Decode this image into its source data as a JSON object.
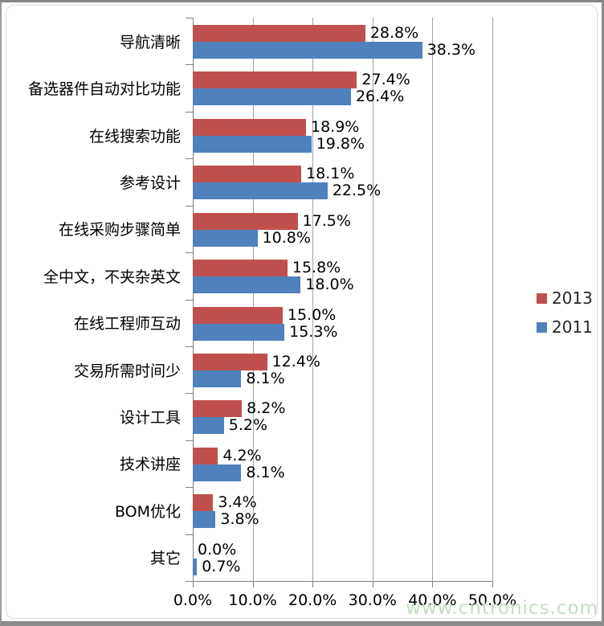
{
  "chart_data": {
    "type": "bar",
    "orientation": "horizontal",
    "title": "",
    "xlabel": "",
    "ylabel": "",
    "xlim": [
      0,
      50
    ],
    "grid": "vertical",
    "legend_position": "right",
    "categories": [
      "导航清晰",
      "备选器件自动对比功能",
      "在线搜索功能",
      "参考设计",
      "在线采购步骤简单",
      "全中文，不夹杂英文",
      "在线工程师互动",
      "交易所需时间少",
      "设计工具",
      "技术讲座",
      "BOM优化",
      "其它"
    ],
    "series": [
      {
        "name": "2013",
        "color": "#C0504D",
        "values": [
          28.8,
          27.4,
          18.9,
          18.1,
          17.5,
          15.8,
          15.0,
          12.4,
          8.2,
          4.2,
          3.4,
          0.0
        ],
        "labels": [
          "28.8%",
          "27.4%",
          "18.9%",
          "18.1%",
          "17.5%",
          "15.8%",
          "15.0%",
          "12.4%",
          "8.2%",
          "4.2%",
          "3.4%",
          "0.0%"
        ]
      },
      {
        "name": "2011",
        "color": "#4F81BD",
        "values": [
          38.3,
          26.4,
          19.8,
          22.5,
          10.8,
          18.0,
          15.3,
          8.1,
          5.2,
          8.1,
          3.8,
          0.7
        ],
        "labels": [
          "38.3%",
          "26.4%",
          "19.8%",
          "22.5%",
          "10.8%",
          "18.0%",
          "15.3%",
          "8.1%",
          "5.2%",
          "8.1%",
          "3.8%",
          "0.7%"
        ]
      }
    ],
    "x_tick_labels": [
      "0.0%",
      "10.0%",
      "20.0%",
      "30.0%",
      "40.0%",
      "50.0%"
    ]
  },
  "colors": {
    "series_2013": "#C0504D",
    "series_2011": "#4F81BD",
    "gridline": "#a3a3a3",
    "axis": "#7f7f7f"
  },
  "watermark": {
    "text": "www.cntronics.com"
  }
}
